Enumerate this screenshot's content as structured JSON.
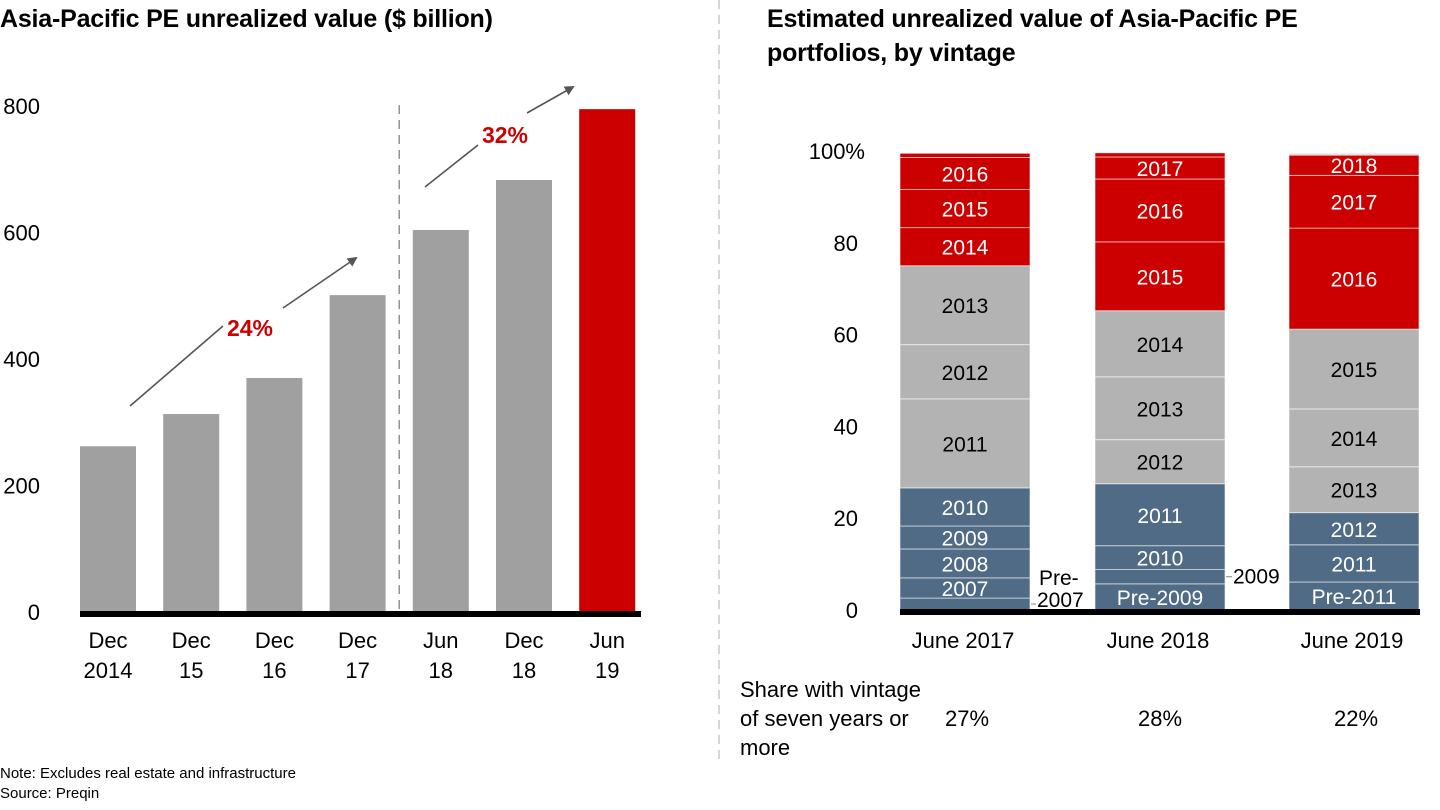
{
  "chart_data": [
    {
      "type": "bar",
      "title": "Asia-Pacific PE unrealized value ($ billion)",
      "xlabel": "",
      "ylabel": "",
      "ylim": [
        0,
        800
      ],
      "yticks": [
        "0",
        "200",
        "400",
        "600",
        "800"
      ],
      "categories": [
        [
          "Dec",
          "2014"
        ],
        [
          "Dec",
          "15"
        ],
        [
          "Dec",
          "16"
        ],
        [
          "Dec",
          "17"
        ],
        [
          "Jun",
          "18"
        ],
        [
          "Dec",
          "18"
        ],
        [
          "Jun",
          "19"
        ]
      ],
      "values": [
        262,
        313,
        370,
        501,
        604,
        683,
        795
      ],
      "colors": [
        "#a0a0a0",
        "#a0a0a0",
        "#a0a0a0",
        "#a0a0a0",
        "#a0a0a0",
        "#a0a0a0",
        "#cc0000"
      ],
      "annotations": [
        {
          "label": "24%",
          "span": [
            "Dec 2014",
            "Dec 17"
          ],
          "meaning": "growth rate"
        },
        {
          "label": "32%",
          "span": [
            "Jun 18",
            "Jun 19"
          ],
          "meaning": "growth rate"
        }
      ],
      "grid": false,
      "separator_after_category": 3
    },
    {
      "type": "bar",
      "stacked": true,
      "title": "Estimated unrealized value of Asia-Pacific PE portfolios, by vintage",
      "ylim": [
        0,
        100
      ],
      "yticks": [
        "0",
        "20",
        "40",
        "60",
        "80",
        "100%"
      ],
      "categories": [
        "June 2017",
        "June 2018",
        "June 2019"
      ],
      "grid": false,
      "stacks": [
        {
          "category": "June 2017",
          "segments": [
            {
              "name": "Pre-2007",
              "value": 2.6,
              "group": "old",
              "label_outside": true
            },
            {
              "name": "2007",
              "value": 4.4,
              "group": "old"
            },
            {
              "name": "2008",
              "value": 6.3,
              "group": "old"
            },
            {
              "name": "2009",
              "value": 5.0,
              "group": "old"
            },
            {
              "name": "2010",
              "value": 8.3,
              "group": "old"
            },
            {
              "name": "2011",
              "value": 19.4,
              "group": "mid"
            },
            {
              "name": "2012",
              "value": 11.8,
              "group": "mid"
            },
            {
              "name": "2013",
              "value": 17.2,
              "group": "mid"
            },
            {
              "name": "2014",
              "value": 8.3,
              "group": "new"
            },
            {
              "name": "2015",
              "value": 8.3,
              "group": "new"
            },
            {
              "name": "2016",
              "value": 7.0,
              "group": "new"
            },
            {
              "name": "",
              "value": 0.9,
              "group": "new"
            }
          ]
        },
        {
          "category": "June 2018",
          "segments": [
            {
              "name": "Pre-2009",
              "value": 5.7,
              "group": "old"
            },
            {
              "name": "2009",
              "value": 3.1,
              "group": "old",
              "label_outside": true
            },
            {
              "name": "2010",
              "value": 5.2,
              "group": "old"
            },
            {
              "name": "2011",
              "value": 13.5,
              "group": "old"
            },
            {
              "name": "2012",
              "value": 9.6,
              "group": "mid"
            },
            {
              "name": "2013",
              "value": 13.7,
              "group": "mid"
            },
            {
              "name": "2014",
              "value": 14.4,
              "group": "mid"
            },
            {
              "name": "2015",
              "value": 15.0,
              "group": "new"
            },
            {
              "name": "2016",
              "value": 13.7,
              "group": "new"
            },
            {
              "name": "2017",
              "value": 4.8,
              "group": "new"
            },
            {
              "name": "",
              "value": 0.9,
              "group": "new"
            }
          ]
        },
        {
          "category": "June 2019",
          "segments": [
            {
              "name": "Pre-2011",
              "value": 6.1,
              "group": "old"
            },
            {
              "name": "2011",
              "value": 8.1,
              "group": "old"
            },
            {
              "name": "2012",
              "value": 7.0,
              "group": "old"
            },
            {
              "name": "2013",
              "value": 10.0,
              "group": "mid"
            },
            {
              "name": "2014",
              "value": 12.6,
              "group": "mid"
            },
            {
              "name": "2015",
              "value": 17.4,
              "group": "mid"
            },
            {
              "name": "2016",
              "value": 22.0,
              "group": "new"
            },
            {
              "name": "2017",
              "value": 11.5,
              "group": "new"
            },
            {
              "name": "2018",
              "value": 4.4,
              "group": "new"
            },
            {
              "name": "",
              "value": 0.4,
              "group": "latest"
            }
          ]
        }
      ],
      "group_colors": {
        "old": "#506b85",
        "mid": "#b3b3b3",
        "new": "#cc0000",
        "latest": "#d9d9d9"
      },
      "share_row": {
        "label": "Share with vintage of seven years or more",
        "values": [
          "27%",
          "28%",
          "22%"
        ]
      }
    }
  ],
  "footer": {
    "note": "Note: Excludes real estate and infrastructure",
    "source": "Source: Preqin"
  },
  "colors": {
    "accent_red": "#cc0000",
    "bar_gray": "#a0a0a0",
    "slate_blue": "#506b85",
    "light_gray": "#b3b3b3"
  }
}
